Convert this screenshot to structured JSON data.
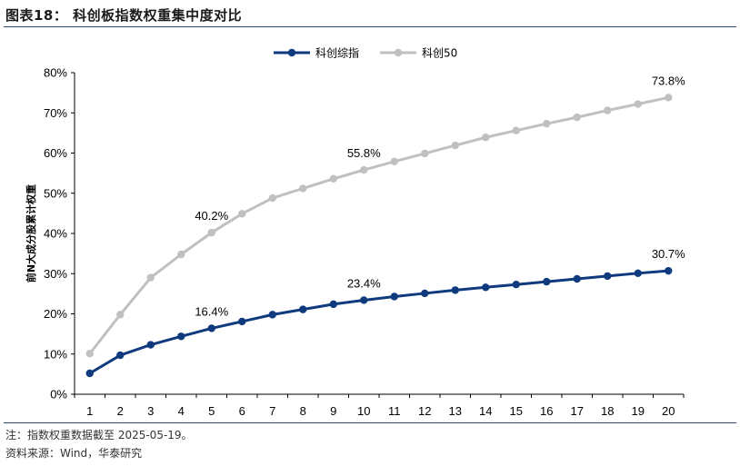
{
  "figure": {
    "title": "图表18：  科创板指数权重集中度对比",
    "note": "注：指数权重数据截至 2025-05-19。",
    "source": "资料来源：Wind，华泰研究"
  },
  "chart_data": {
    "type": "line",
    "title": "",
    "xlabel": "",
    "ylabel": "前N大成分股累计权重",
    "x": [
      1,
      2,
      3,
      4,
      5,
      6,
      7,
      8,
      9,
      10,
      11,
      12,
      13,
      14,
      15,
      16,
      17,
      18,
      19,
      20
    ],
    "ylim": [
      0,
      80
    ],
    "yticks": [
      "0%",
      "10%",
      "20%",
      "30%",
      "40%",
      "50%",
      "60%",
      "70%",
      "80%"
    ],
    "grid": false,
    "legend_position": "top-center",
    "series": [
      {
        "name": "科创综指",
        "color": "#0f3a7d",
        "values": [
          5.2,
          9.7,
          12.3,
          14.4,
          16.4,
          18.1,
          19.8,
          21.1,
          22.4,
          23.4,
          24.3,
          25.1,
          25.9,
          26.6,
          27.3,
          28.0,
          28.7,
          29.4,
          30.1,
          30.7
        ]
      },
      {
        "name": "科创50",
        "color": "#c0c0c0",
        "values": [
          10.1,
          19.8,
          29.0,
          34.8,
          40.2,
          44.9,
          48.8,
          51.2,
          53.6,
          55.8,
          57.9,
          59.9,
          61.9,
          63.9,
          65.6,
          67.3,
          68.9,
          70.6,
          72.2,
          73.8
        ]
      }
    ],
    "annotations": [
      {
        "series": 0,
        "x": 5,
        "text": "16.4%"
      },
      {
        "series": 0,
        "x": 10,
        "text": "23.4%"
      },
      {
        "series": 0,
        "x": 20,
        "text": "30.7%"
      },
      {
        "series": 1,
        "x": 5,
        "text": "40.2%"
      },
      {
        "series": 1,
        "x": 10,
        "text": "55.8%"
      },
      {
        "series": 1,
        "x": 20,
        "text": "73.8%"
      }
    ]
  }
}
